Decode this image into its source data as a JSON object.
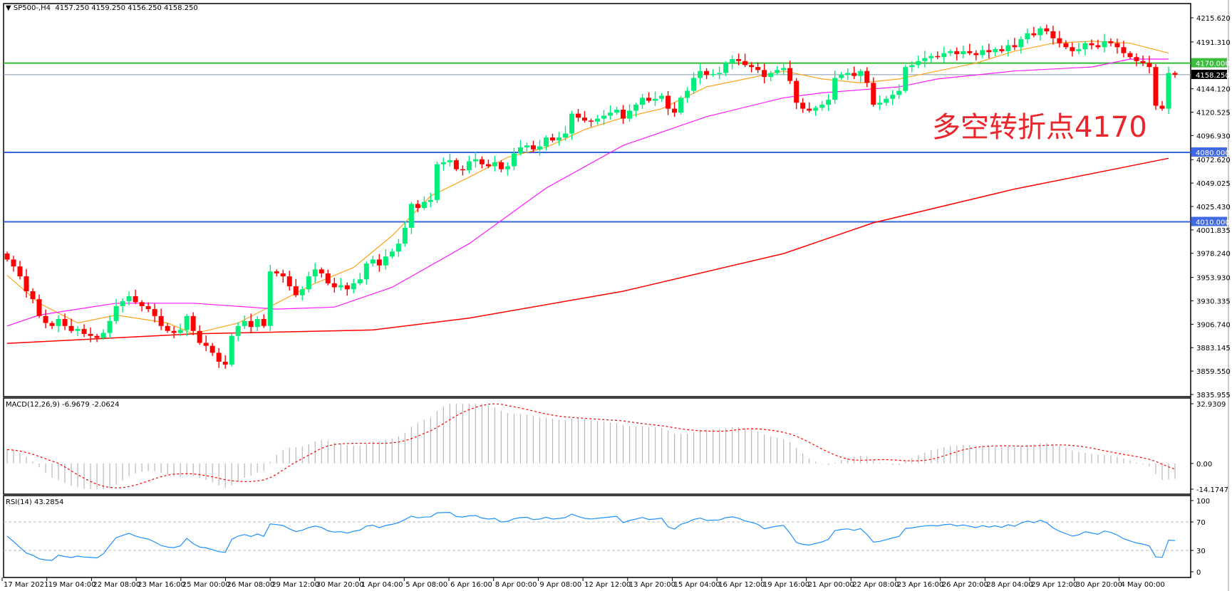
{
  "header": {
    "symbol": "SP500-,H4",
    "ohlc": "4157.250 4159.250 4156.250 4158.250"
  },
  "annotation": "多空转折点4170",
  "colors": {
    "bull": "#00ee7a",
    "bear": "#ff0000",
    "ma_fast": "#ffa31a",
    "ma_mid": "#ff1aff",
    "ma_slow": "#ff0000",
    "support_line": "#3366dd",
    "pivot_line": "#33bb33",
    "current_line": "#8899aa",
    "rsi": "#1e90ff",
    "macd_hist": "#b8b8b8",
    "macd_signal": "#ff0000"
  },
  "chart_data": [
    {
      "type": "candlestick",
      "symbol": "SP500-",
      "timeframe": "H4",
      "ylim": [
        3835.955,
        4215.62
      ],
      "y_ticks": [
        "4215.620",
        "4191.310",
        "4144.120",
        "4120.525",
        "4096.930",
        "4072.620",
        "4049.025",
        "4025.430",
        "4001.835",
        "3978.240",
        "3953.930",
        "3930.335",
        "3906.740",
        "3883.145",
        "3859.550",
        "3835.955"
      ],
      "x_ticks": [
        "17 Mar 2021",
        "19 Mar 04:00",
        "22 Mar 08:00",
        "23 Mar 16:00",
        "25 Mar 00:00",
        "26 Mar 08:00",
        "29 Mar 12:00",
        "30 Mar 20:00",
        "1 Apr 04:00",
        "5 Apr 08:00",
        "6 Apr 16:00",
        "8 Apr 00:00",
        "9 Apr 08:00",
        "12 Apr 12:00",
        "13 Apr 20:00",
        "15 Apr 04:00",
        "16 Apr 12:00",
        "19 Apr 16:00",
        "21 Apr 00:00",
        "22 Apr 08:00",
        "23 Apr 16:00",
        "26 Apr 20:00",
        "28 Apr 04:00",
        "29 Apr 12:00",
        "30 Apr 20:00",
        "4 May 00:00"
      ],
      "closes": [
        3972,
        3965,
        3955,
        3940,
        3932,
        3915,
        3908,
        3905,
        3912,
        3905,
        3900,
        3902,
        3897,
        3895,
        3893,
        3898,
        3910,
        3925,
        3930,
        3935,
        3929,
        3925,
        3922,
        3915,
        3905,
        3900,
        3898,
        3901,
        3915,
        3900,
        3888,
        3885,
        3878,
        3869,
        3866,
        3895,
        3905,
        3910,
        3904,
        3912,
        3905,
        3960,
        3958,
        3955,
        3945,
        3936,
        3942,
        3955,
        3962,
        3958,
        3948,
        3944,
        3946,
        3942,
        3948,
        3952,
        3968,
        3972,
        3966,
        3975,
        3980,
        3988,
        4004,
        4028,
        4024,
        4030,
        4032,
        4068,
        4070,
        4072,
        4063,
        4062,
        4071,
        4073,
        4068,
        4066,
        4070,
        4063,
        4066,
        4079,
        4085,
        4087,
        4083,
        4086,
        4095,
        4092,
        4095,
        4099,
        4119,
        4115,
        4112,
        4111,
        4114,
        4117,
        4120,
        4123,
        4114,
        4122,
        4128,
        4135,
        4132,
        4134,
        4137,
        4124,
        4120,
        4135,
        4142,
        4155,
        4162,
        4158,
        4159,
        4160,
        4170,
        4174,
        4172,
        4168,
        4166,
        4163,
        4156,
        4160,
        4163,
        4165,
        4152,
        4130,
        4124,
        4122,
        4125,
        4128,
        4133,
        4155,
        4158,
        4160,
        4157,
        4162,
        4150,
        4128,
        4130,
        4134,
        4138,
        4142,
        4166,
        4168,
        4172,
        4175,
        4177,
        4176,
        4180,
        4182,
        4179,
        4182,
        4180,
        4178,
        4183,
        4181,
        4184,
        4182,
        4188,
        4186,
        4194,
        4200,
        4198,
        4205,
        4202,
        4195,
        4190,
        4186,
        4182,
        4184,
        4190,
        4188,
        4186,
        4192,
        4190,
        4186,
        4180,
        4176,
        4172,
        4170,
        4166,
        4127,
        4124,
        4160,
        4158.25
      ],
      "moving_averages": [
        {
          "color": "ma_fast",
          "points": [
            [
              0,
              3956
            ],
            [
              5,
              3928
            ],
            [
              11,
              3908
            ],
            [
              17,
              3916
            ],
            [
              25,
              3908
            ],
            [
              29,
              3897
            ],
            [
              36,
              3908
            ],
            [
              42,
              3928
            ],
            [
              48,
              3948
            ],
            [
              54,
              3964
            ],
            [
              60,
              3996
            ],
            [
              66,
              4036
            ],
            [
              72,
              4055
            ],
            [
              78,
              4075
            ],
            [
              84,
              4085
            ],
            [
              90,
              4103
            ],
            [
              96,
              4115
            ],
            [
              102,
              4124
            ],
            [
              109,
              4146
            ],
            [
              115,
              4154
            ],
            [
              121,
              4162
            ],
            [
              127,
              4154
            ],
            [
              133,
              4150
            ],
            [
              139,
              4154
            ],
            [
              145,
              4162
            ],
            [
              151,
              4170
            ],
            [
              157,
              4182
            ],
            [
              163,
              4190
            ],
            [
              169,
              4192
            ],
            [
              175,
              4190
            ],
            [
              181,
              4180
            ]
          ]
        },
        {
          "color": "ma_mid",
          "points": [
            [
              0,
              3905
            ],
            [
              5,
              3916
            ],
            [
              17,
              3928
            ],
            [
              29,
              3928
            ],
            [
              42,
              3922
            ],
            [
              51,
              3924
            ],
            [
              60,
              3944
            ],
            [
              72,
              3988
            ],
            [
              84,
              4044
            ],
            [
              96,
              4087
            ],
            [
              109,
              4116
            ],
            [
              121,
              4135
            ],
            [
              127,
              4140
            ],
            [
              133,
              4143
            ],
            [
              139,
              4146
            ],
            [
              145,
              4154
            ],
            [
              157,
              4162
            ],
            [
              169,
              4166
            ],
            [
              175,
              4174
            ],
            [
              181,
              4174
            ]
          ]
        },
        {
          "color": "ma_slow",
          "points": [
            [
              0,
              3887.5
            ],
            [
              29,
              3897
            ],
            [
              57,
              3901
            ],
            [
              72,
              3913
            ],
            [
              96,
              3940
            ],
            [
              121,
              3978
            ],
            [
              135,
              4009
            ],
            [
              157,
              4043
            ],
            [
              181,
              4074
            ]
          ]
        }
      ],
      "horizontal_lines": [
        {
          "price": 4170,
          "label": "4170.000",
          "color": "pivot_line"
        },
        {
          "price": 4158.25,
          "label": "4158.250",
          "color": "current_line"
        },
        {
          "price": 4080,
          "label": "4080.000",
          "color": "support_line"
        },
        {
          "price": 4010,
          "label": "4010.000",
          "color": "support_line"
        }
      ]
    },
    {
      "type": "bar+line",
      "title": "MACD(12,26,9) -6.9679 -2.0624",
      "ylim": [
        -14.1747,
        32.9309
      ],
      "y_ticks": [
        "32.9309",
        "0.00",
        "-14.1747"
      ]
    },
    {
      "type": "line",
      "title": "RSI(14) 43.2854",
      "ylim": [
        0,
        100
      ],
      "y_ticks": [
        "100",
        "70",
        "30",
        "0"
      ],
      "levels": [
        70,
        30
      ]
    }
  ]
}
